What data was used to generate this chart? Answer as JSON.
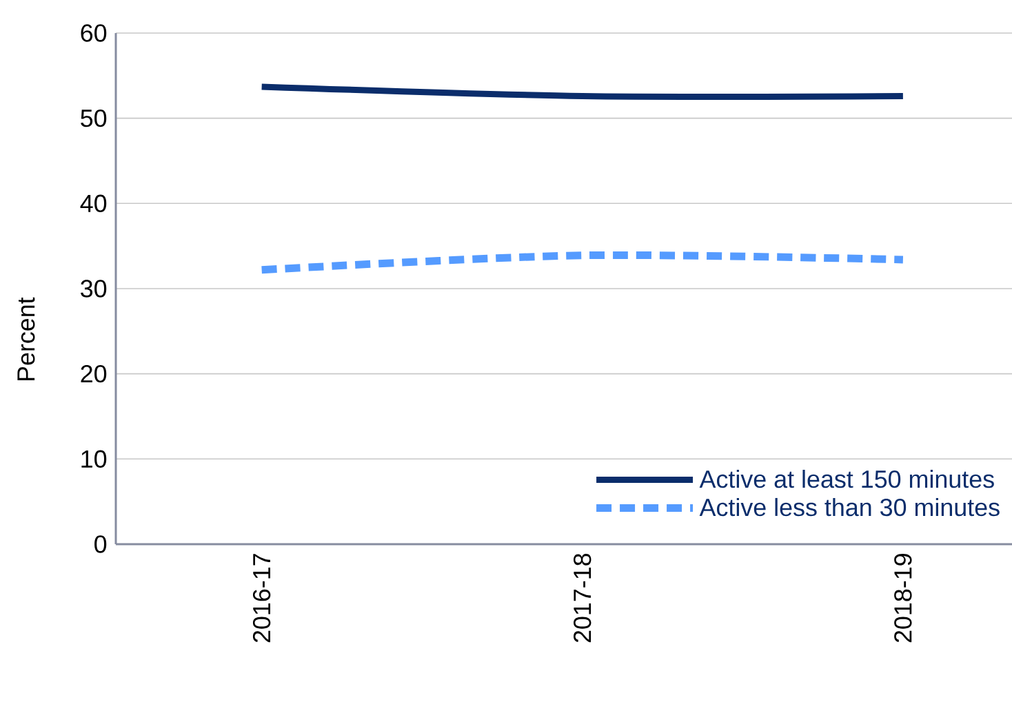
{
  "chart_data": {
    "type": "line",
    "ylabel": "Percent",
    "categories": [
      "2016-17",
      "2017-18",
      "2018-19"
    ],
    "series": [
      {
        "name": "Active at least 150 minutes",
        "color": "#0b2d6b",
        "values": [
          53.7,
          52.6,
          52.6
        ],
        "line_style": "solid"
      },
      {
        "name": "Active less than 30 minutes",
        "color": "#559bff",
        "values": [
          32.2,
          33.9,
          33.4
        ],
        "line_style": "dashed"
      }
    ],
    "ylim": [
      0,
      60
    ],
    "yticks": [
      0,
      10,
      20,
      30,
      40,
      50,
      60
    ],
    "grid": "y",
    "legend": "bottom right",
    "marker": "none"
  }
}
